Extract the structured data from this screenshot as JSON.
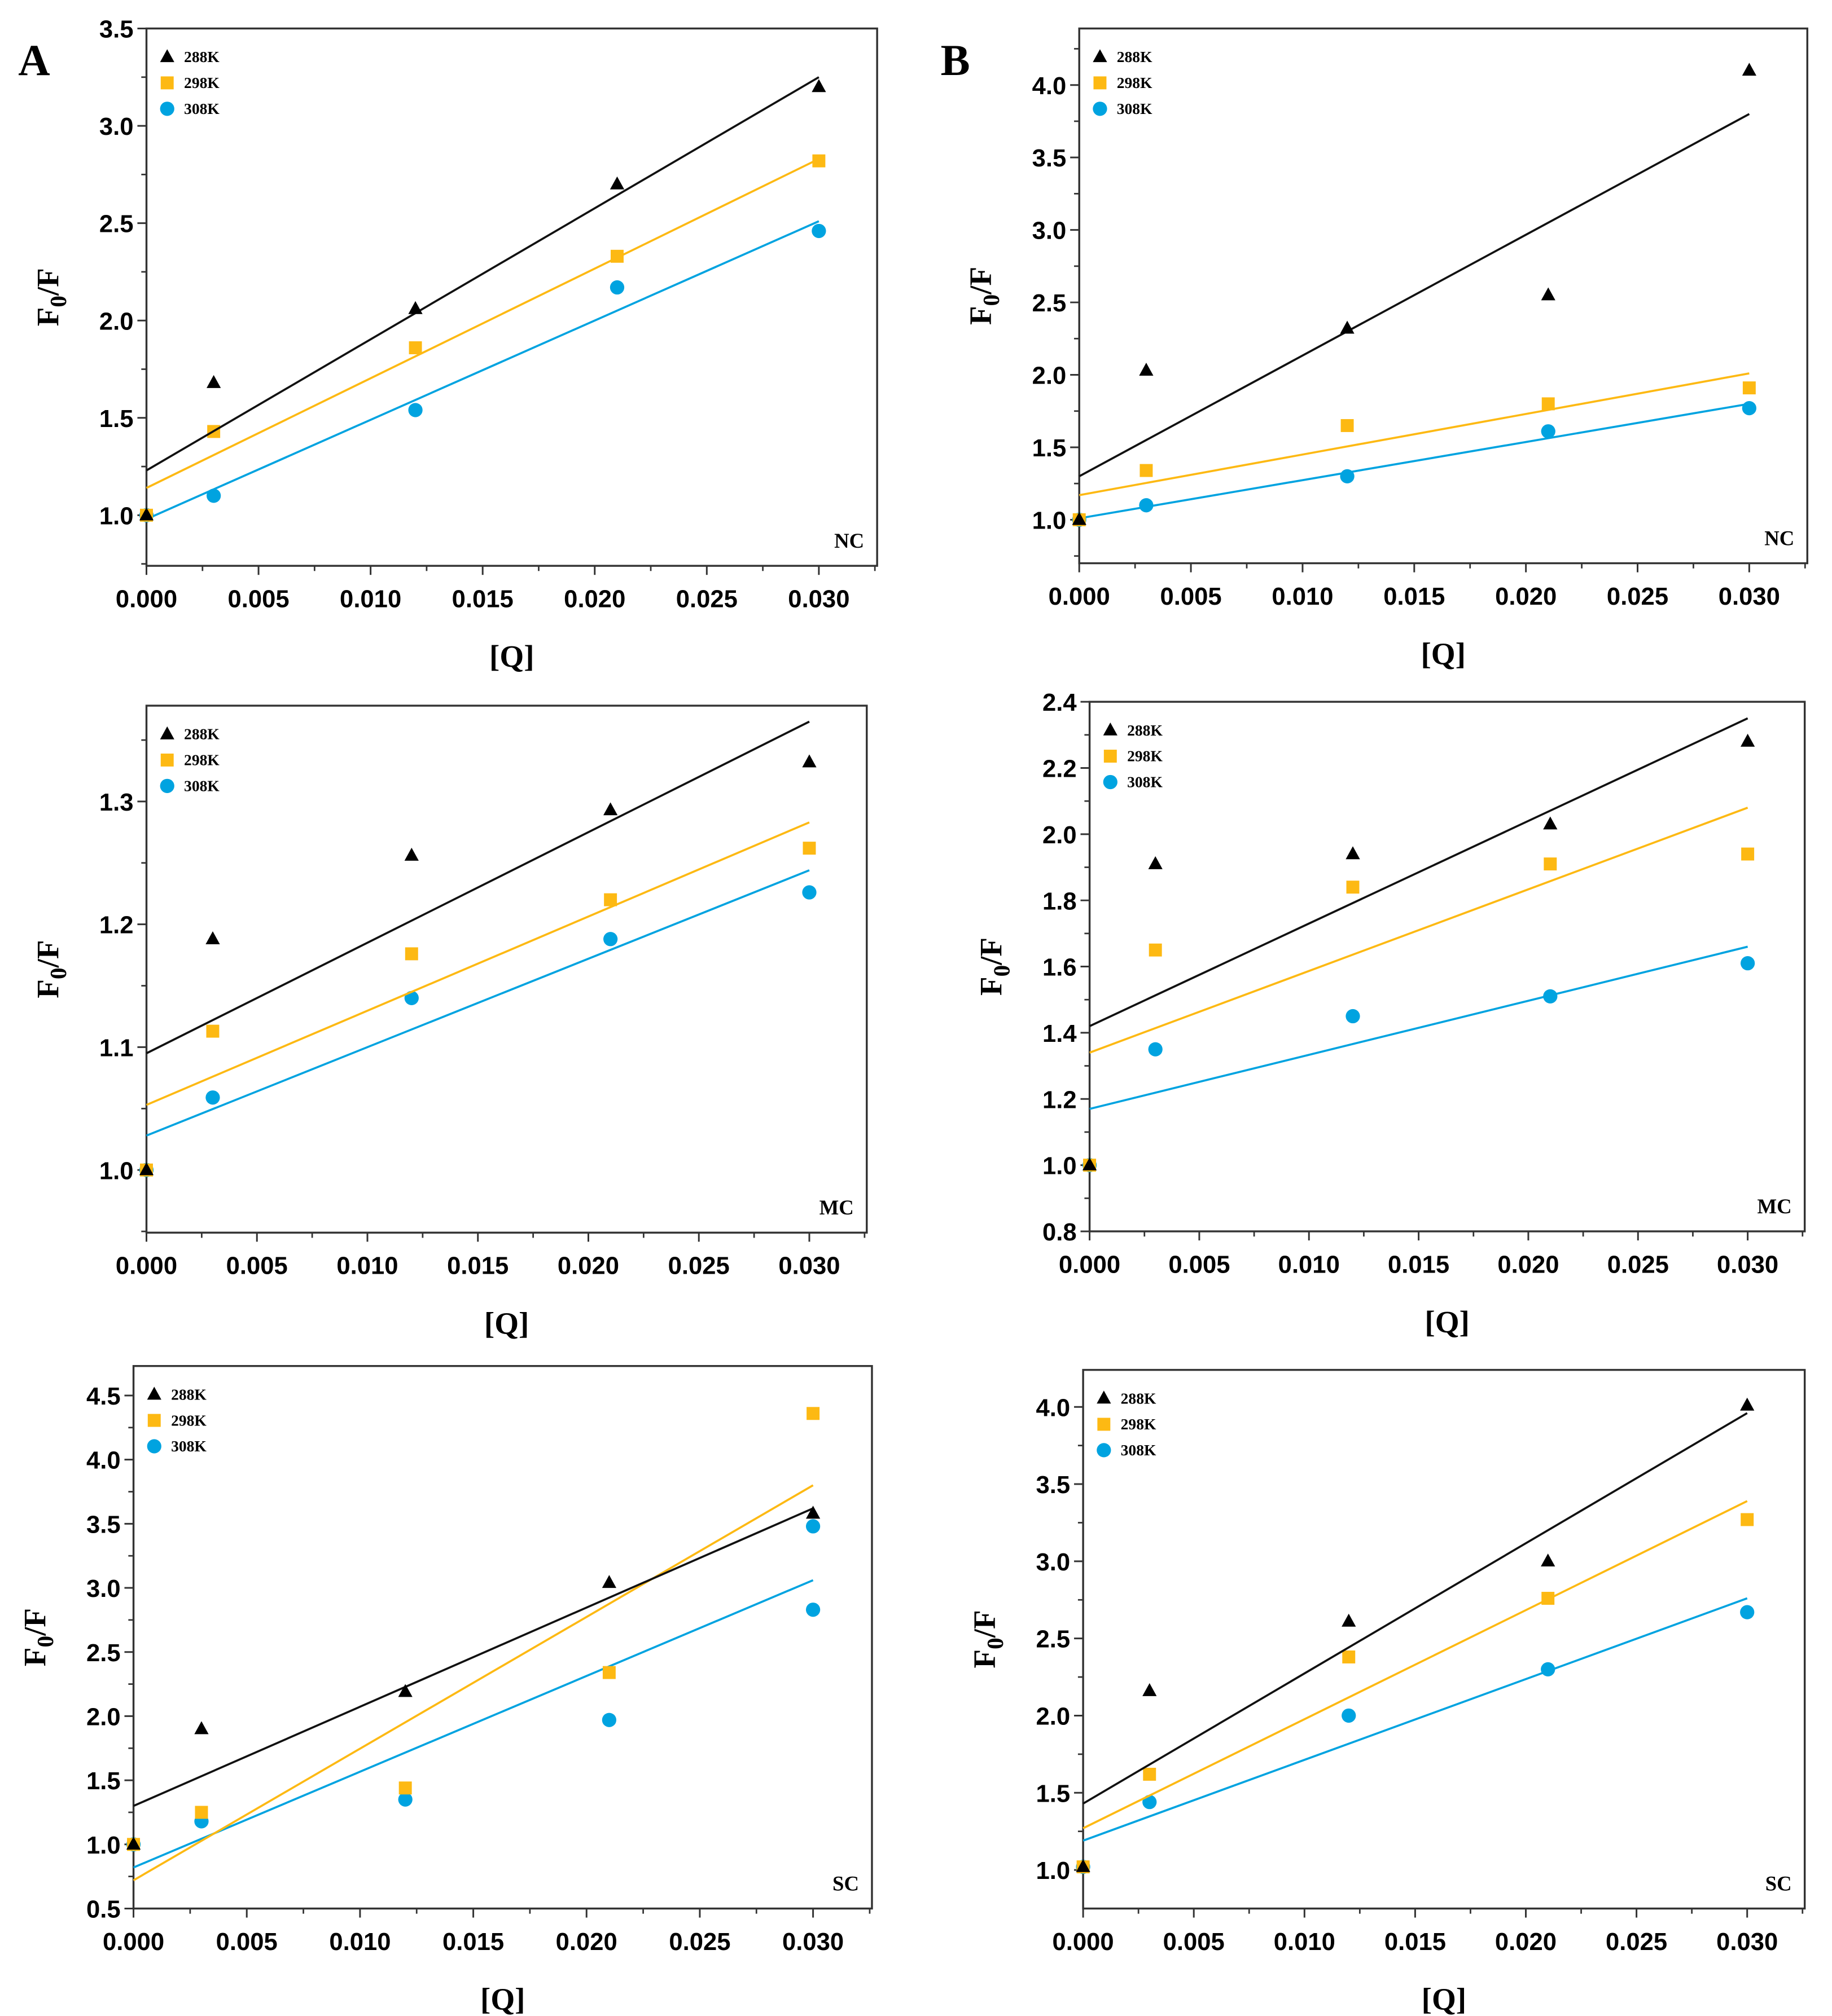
{
  "colors": {
    "288K": "#000000",
    "298K": "#FDB913",
    "308K": "#00A3E0"
  },
  "chart_data": [
    {
      "type": "scatter",
      "panel_letter": "A",
      "label": "NC",
      "xlabel": "[Q]",
      "ylabel": "F0/F",
      "xlim": [
        0,
        0.0326
      ],
      "ylim": [
        0.74,
        3.5
      ],
      "xticks": [
        "0.000",
        "0.005",
        "0.010",
        "0.015",
        "0.020",
        "0.025",
        "0.030"
      ],
      "yticks": [
        "1.0",
        "1.5",
        "2.0",
        "2.5",
        "3.0",
        "3.5"
      ],
      "x": [
        0,
        0.003,
        0.012,
        0.021,
        0.03
      ],
      "series": [
        {
          "name": "288K",
          "marker": "triangle",
          "values": [
            1.0,
            1.68,
            2.06,
            2.7,
            3.2
          ],
          "fit": [
            1.23,
            3.25
          ]
        },
        {
          "name": "298K",
          "marker": "square",
          "values": [
            1.0,
            1.43,
            1.86,
            2.33,
            2.82
          ],
          "fit": [
            1.14,
            2.83
          ]
        },
        {
          "name": "308K",
          "marker": "circle",
          "values": [
            1.0,
            1.1,
            1.54,
            2.17,
            2.46
          ],
          "fit": [
            0.98,
            2.51
          ]
        }
      ]
    },
    {
      "type": "scatter",
      "panel_letter": "B",
      "label": "NC",
      "xlabel": "[Q]",
      "ylabel": "F0/F",
      "xlim": [
        0,
        0.0326
      ],
      "ylim": [
        0.7,
        4.39
      ],
      "xticks": [
        "0.000",
        "0.005",
        "0.010",
        "0.015",
        "0.020",
        "0.025",
        "0.030"
      ],
      "yticks": [
        "1.0",
        "1.5",
        "2.0",
        "2.5",
        "3.0",
        "3.5",
        "4.0"
      ],
      "x": [
        0,
        0.003,
        0.012,
        0.021,
        0.03
      ],
      "series": [
        {
          "name": "288K",
          "marker": "triangle",
          "values": [
            1.0,
            2.03,
            2.32,
            2.55,
            4.1
          ],
          "fit": [
            1.3,
            3.8
          ]
        },
        {
          "name": "298K",
          "marker": "square",
          "values": [
            1.0,
            1.34,
            1.65,
            1.8,
            1.91
          ],
          "fit": [
            1.17,
            2.01
          ]
        },
        {
          "name": "308K",
          "marker": "circle",
          "values": [
            1.0,
            1.1,
            1.3,
            1.61,
            1.77
          ],
          "fit": [
            1.01,
            1.8
          ]
        }
      ]
    },
    {
      "type": "scatter",
      "panel_letter": "",
      "label": "MC",
      "xlabel": "[Q]",
      "ylabel": "F0/F",
      "xlim": [
        0,
        0.0326
      ],
      "ylim": [
        0.949,
        1.378
      ],
      "xticks": [
        "0.000",
        "0.005",
        "0.010",
        "0.015",
        "0.020",
        "0.025",
        "0.030"
      ],
      "yticks": [
        "1.0",
        "1.1",
        "1.2",
        "1.3"
      ],
      "x": [
        0,
        0.003,
        0.012,
        0.021,
        0.03
      ],
      "series": [
        {
          "name": "288K",
          "marker": "triangle",
          "values": [
            1.0,
            1.188,
            1.256,
            1.293,
            1.332
          ],
          "fit": [
            1.095,
            1.365
          ]
        },
        {
          "name": "298K",
          "marker": "square",
          "values": [
            1.0,
            1.113,
            1.176,
            1.22,
            1.262
          ],
          "fit": [
            1.053,
            1.283
          ]
        },
        {
          "name": "308K",
          "marker": "circle",
          "values": [
            1.0,
            1.059,
            1.14,
            1.188,
            1.226
          ],
          "fit": [
            1.028,
            1.244
          ]
        }
      ]
    },
    {
      "type": "scatter",
      "panel_letter": "",
      "label": "MC",
      "xlabel": "[Q]",
      "ylabel": "F0/F",
      "xlim": [
        0,
        0.0326
      ],
      "ylim": [
        0.8,
        2.4
      ],
      "xticks": [
        "0.000",
        "0.005",
        "0.010",
        "0.015",
        "0.020",
        "0.025",
        "0.030"
      ],
      "yticks": [
        "0.8",
        "1.0",
        "1.2",
        "1.4",
        "1.6",
        "1.8",
        "2.0",
        "2.2",
        "2.4"
      ],
      "x": [
        0,
        0.003,
        0.012,
        0.021,
        0.03
      ],
      "series": [
        {
          "name": "288K",
          "marker": "triangle",
          "values": [
            1.0,
            1.91,
            1.94,
            2.03,
            2.28
          ],
          "fit": [
            1.42,
            2.35
          ]
        },
        {
          "name": "298K",
          "marker": "square",
          "values": [
            1.0,
            1.65,
            1.84,
            1.91,
            1.94
          ],
          "fit": [
            1.34,
            2.08
          ]
        },
        {
          "name": "308K",
          "marker": "circle",
          "values": [
            1.0,
            1.35,
            1.45,
            1.51,
            1.61
          ],
          "fit": [
            1.17,
            1.66
          ]
        }
      ]
    },
    {
      "type": "scatter",
      "panel_letter": "",
      "label": "SC",
      "xlabel": "[Q]",
      "ylabel": "F0/F",
      "xlim": [
        0,
        0.0326
      ],
      "ylim": [
        0.5,
        4.73
      ],
      "xticks": [
        "0.000",
        "0.005",
        "0.010",
        "0.015",
        "0.020",
        "0.025",
        "0.030"
      ],
      "yticks": [
        "0.5",
        "1.0",
        "1.5",
        "2.0",
        "2.5",
        "3.0",
        "3.5",
        "4.0",
        "4.5"
      ],
      "x": [
        0,
        0.003,
        0.012,
        0.021,
        0.03
      ],
      "series": [
        {
          "name": "288K",
          "marker": "triangle",
          "values": [
            1.0,
            1.9,
            2.19,
            3.04,
            3.58
          ],
          "fit": [
            1.3,
            3.62
          ]
        },
        {
          "name": "298K",
          "marker": "square",
          "values": [
            1.0,
            1.25,
            1.44,
            2.34,
            4.36
          ],
          "fit": [
            0.72,
            3.8
          ]
        },
        {
          "name": "308K",
          "marker": "circle",
          "values": [
            1.0,
            1.18,
            1.35,
            1.97,
            2.83
          ],
          "fit": [
            0.82,
            3.06
          ],
          "extra_points": [
            [
              0.03,
              3.48
            ]
          ]
        }
      ]
    },
    {
      "type": "scatter",
      "panel_letter": "",
      "label": "SC",
      "xlabel": "[Q]",
      "ylabel": "F0/F",
      "xlim": [
        0,
        0.0326
      ],
      "ylim": [
        0.75,
        4.24
      ],
      "xticks": [
        "0.000",
        "0.005",
        "0.010",
        "0.015",
        "0.020",
        "0.025",
        "0.030"
      ],
      "yticks": [
        "1.0",
        "1.5",
        "2.0",
        "2.5",
        "3.0",
        "3.5",
        "4.0"
      ],
      "x": [
        0,
        0.003,
        0.012,
        0.021,
        0.03
      ],
      "series": [
        {
          "name": "288K",
          "marker": "triangle",
          "values": [
            1.02,
            2.16,
            2.61,
            3.0,
            4.01
          ],
          "fit": [
            1.43,
            3.96
          ]
        },
        {
          "name": "298K",
          "marker": "square",
          "values": [
            1.02,
            1.62,
            2.38,
            2.76,
            3.27
          ],
          "fit": [
            1.27,
            3.39
          ]
        },
        {
          "name": "308K",
          "marker": "circle",
          "values": [
            1.02,
            1.44,
            2.0,
            2.3,
            2.67
          ],
          "fit": [
            1.19,
            2.76
          ]
        }
      ]
    }
  ]
}
